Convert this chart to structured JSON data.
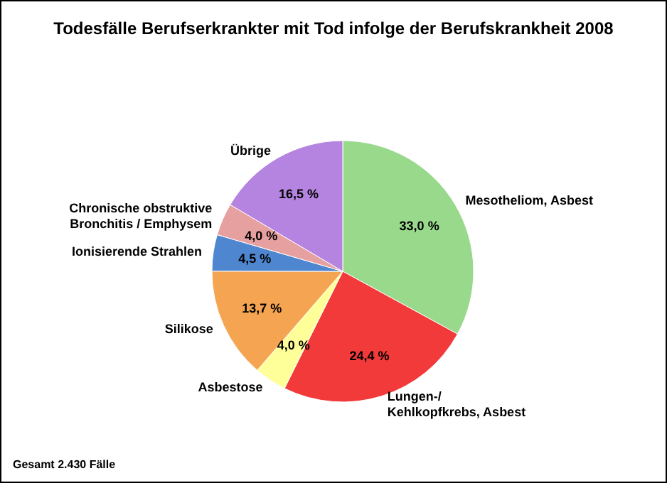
{
  "chart_data": {
    "type": "pie",
    "title": "Todesfälle Berufserkrankter mit Tod infolge der Berufskrankheit 2008",
    "categories": [
      "Mesotheliom, Asbest",
      "Lungen-/\nKehlkopfkrebs, Asbest",
      "Asbestose",
      "Silikose",
      "Ionisierende Strahlen",
      "Chronische obstruktive\nBronchitis / Emphysem",
      "Übrige"
    ],
    "values": [
      33.0,
      24.4,
      4.0,
      13.7,
      4.5,
      4.0,
      16.5
    ],
    "value_labels": [
      "33,0 %",
      "24,4 %",
      "4,0 %",
      "13,7 %",
      "4,5 %",
      "4,0 %",
      "16,5 %"
    ],
    "colors": [
      "#99d98c",
      "#f23a3a",
      "#ffff99",
      "#f5a452",
      "#4f86d0",
      "#e6a0a0",
      "#b584e0"
    ],
    "annotations": [
      "Gesamt 2.430 Fälle"
    ],
    "legend": false
  }
}
